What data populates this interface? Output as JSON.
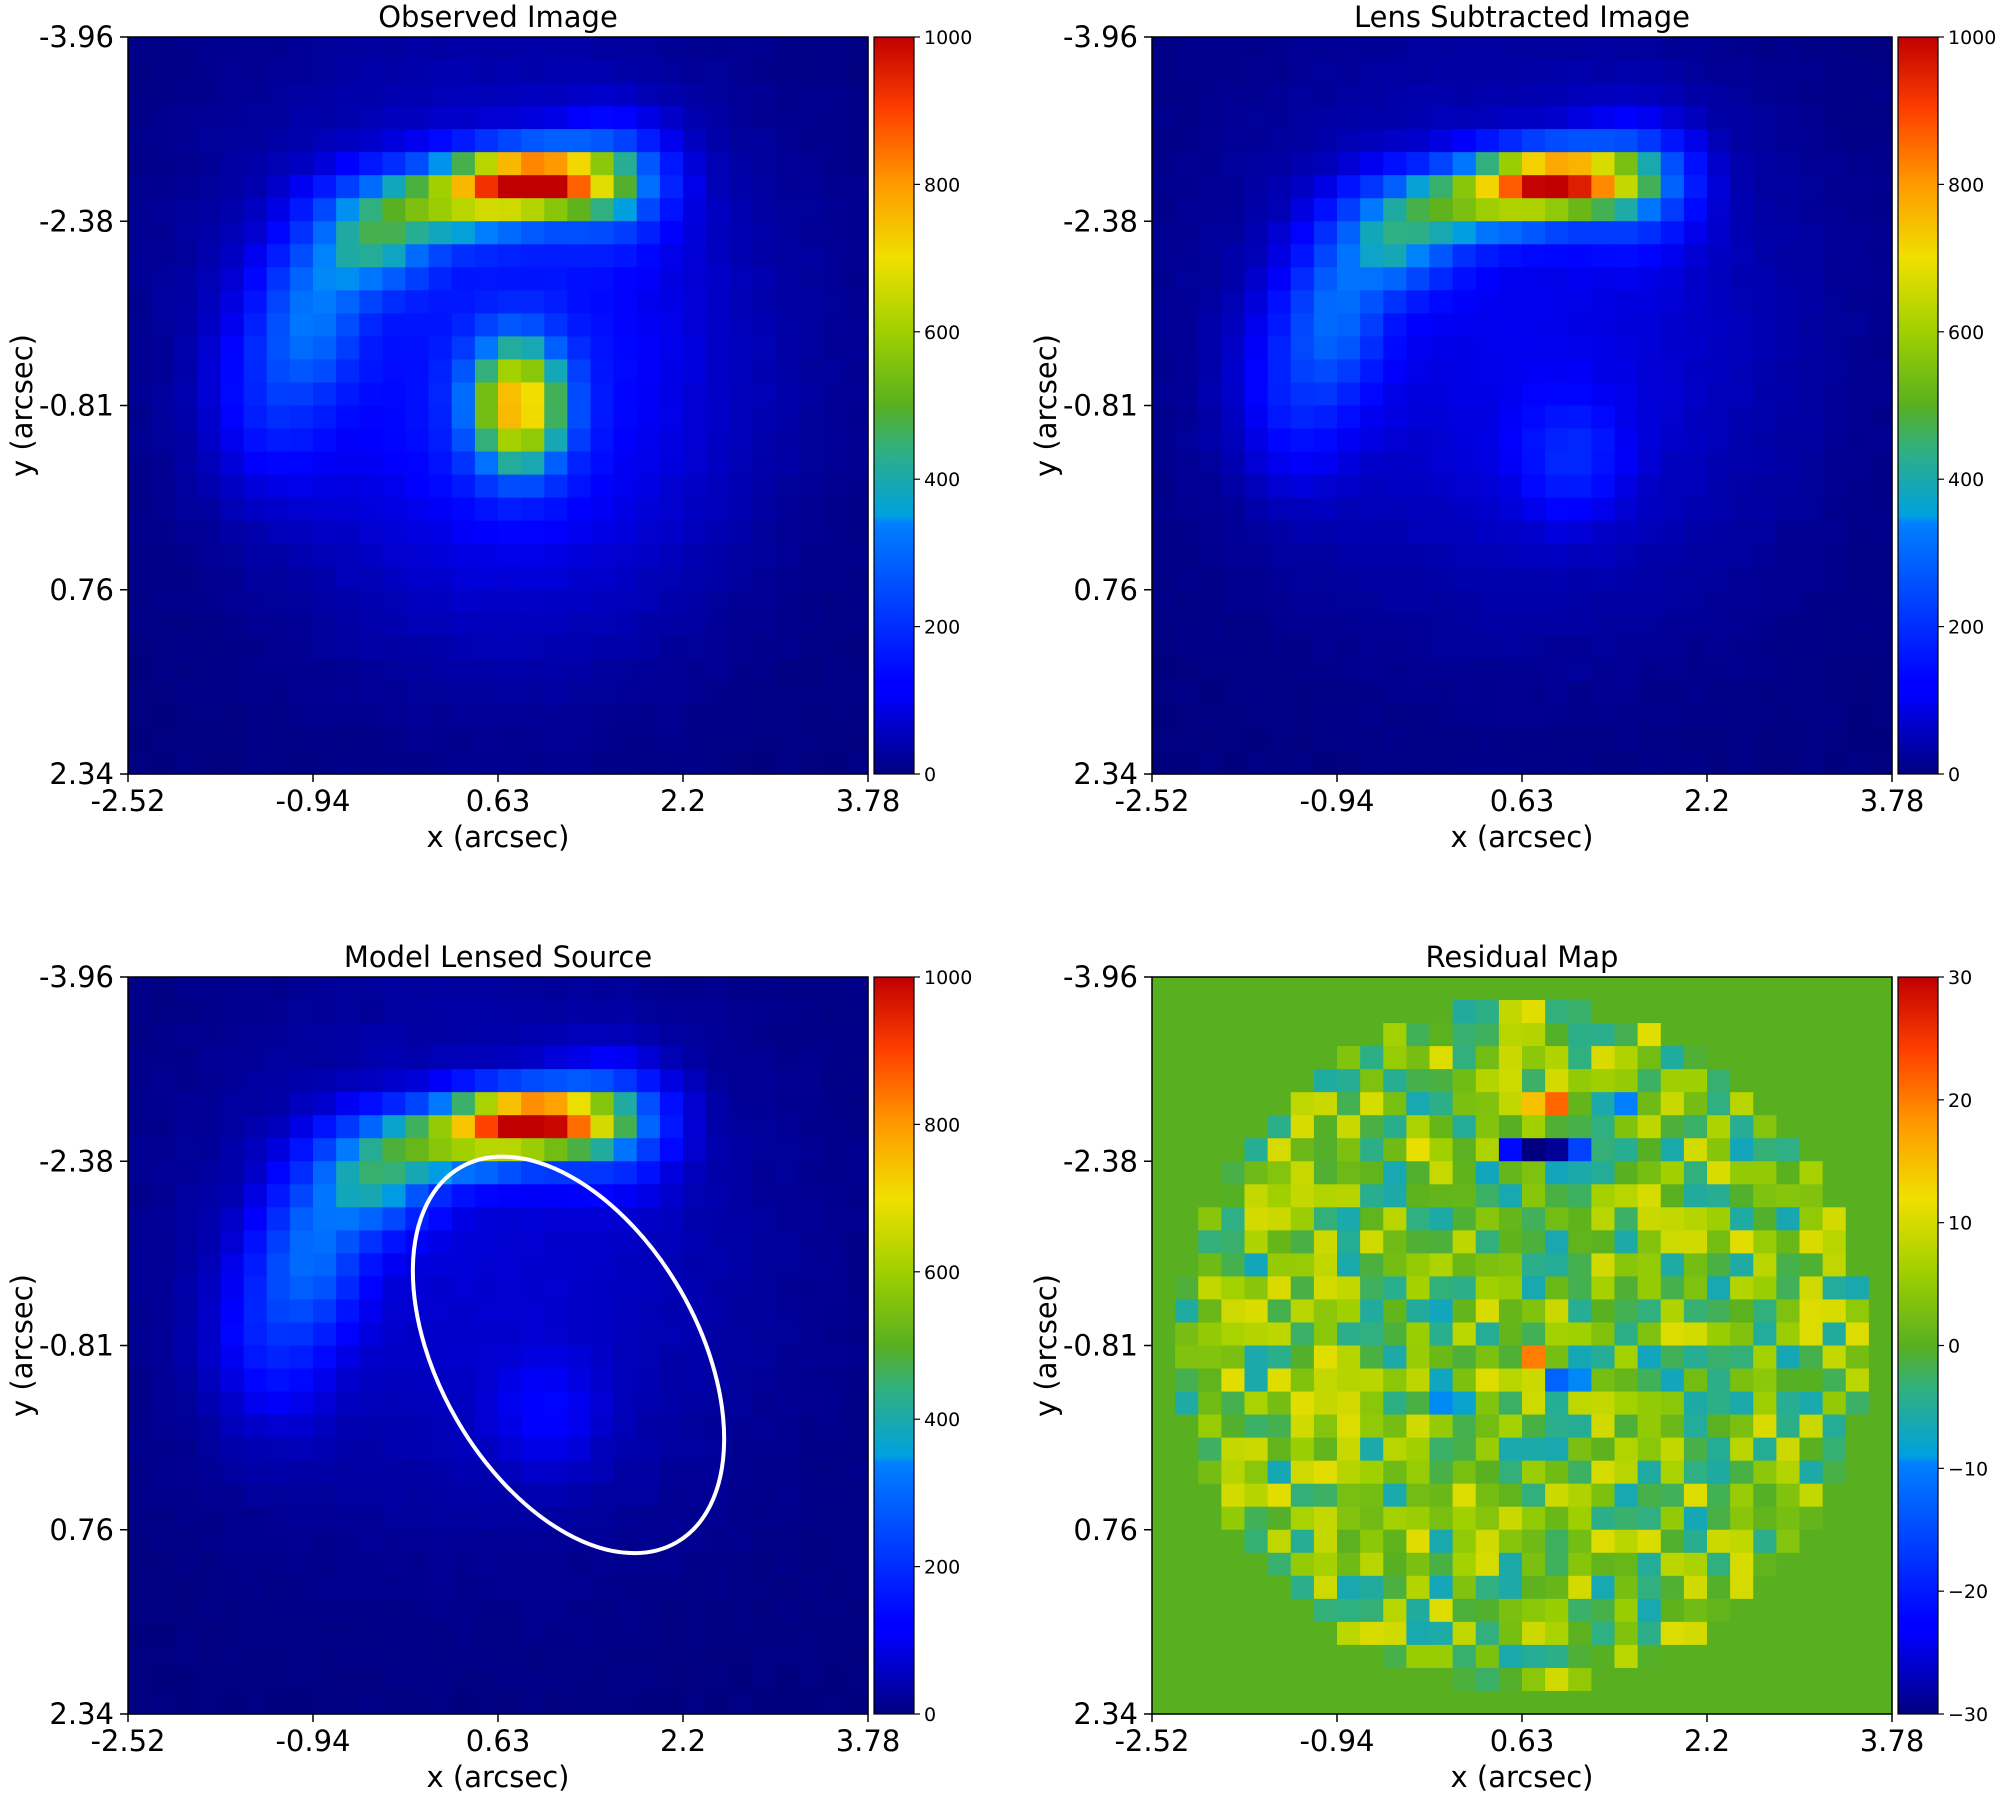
{
  "figure": {
    "panels": [
      {
        "title": "Observed Image"
      },
      {
        "title": "Lens Subtracted Image"
      },
      {
        "title": "Model Lensed Source"
      },
      {
        "title": "Residual Map"
      }
    ]
  },
  "chart_data": [
    {
      "type": "heatmap",
      "id": "observed",
      "title": "Observed Image",
      "xlabel": "x (arcsec)",
      "ylabel": "y (arcsec)",
      "xticks": [
        "-2.52",
        "-0.94",
        "0.63",
        "2.2",
        "3.78"
      ],
      "yticks": [
        "-3.96",
        "-2.38",
        "-0.81",
        "0.76",
        "2.34"
      ],
      "xlim": [
        -2.52,
        3.78
      ],
      "ylim": [
        -3.96,
        2.34
      ],
      "colormap": "jet",
      "colorbar": {
        "min": 0,
        "max": 1000,
        "ticks": [
          "0",
          "200",
          "400",
          "600",
          "800",
          "1000"
        ]
      },
      "grid_size": [
        32,
        32
      ],
      "features": [
        {
          "kind": "arc",
          "description": "bright upper arc",
          "peak_x": 0.9,
          "peak_y": -2.8,
          "peak_value": 1000
        },
        {
          "kind": "blob",
          "description": "central lens galaxy",
          "x": 0.8,
          "y": -0.8,
          "peak_value": 650
        }
      ]
    },
    {
      "type": "heatmap",
      "id": "lens_subtracted",
      "title": "Lens Subtracted Image",
      "xlabel": "x (arcsec)",
      "ylabel": "y (arcsec)",
      "xticks": [
        "-2.52",
        "-0.94",
        "0.63",
        "2.2",
        "3.78"
      ],
      "yticks": [
        "-3.96",
        "-2.38",
        "-0.81",
        "0.76",
        "2.34"
      ],
      "xlim": [
        -2.52,
        3.78
      ],
      "ylim": [
        -3.96,
        2.34
      ],
      "colormap": "jet",
      "colorbar": {
        "min": 0,
        "max": 1000,
        "ticks": [
          "0",
          "200",
          "400",
          "600",
          "800",
          "1000"
        ]
      },
      "grid_size": [
        32,
        32
      ],
      "features": [
        {
          "kind": "arc",
          "description": "upper arc",
          "peak_x": 0.9,
          "peak_y": -2.8,
          "peak_value": 950
        },
        {
          "kind": "blob",
          "description": "faint counter image",
          "x": 1.0,
          "y": -0.4,
          "peak_value": 160
        }
      ]
    },
    {
      "type": "heatmap",
      "id": "model",
      "title": "Model Lensed Source",
      "xlabel": "x (arcsec)",
      "ylabel": "y (arcsec)",
      "xticks": [
        "-2.52",
        "-0.94",
        "0.63",
        "2.2",
        "3.78"
      ],
      "yticks": [
        "-3.96",
        "-2.38",
        "-0.81",
        "0.76",
        "2.34"
      ],
      "xlim": [
        -2.52,
        3.78
      ],
      "ylim": [
        -3.96,
        2.34
      ],
      "colormap": "jet",
      "colorbar": {
        "min": 0,
        "max": 1000,
        "ticks": [
          "0",
          "200",
          "400",
          "600",
          "800",
          "1000"
        ]
      },
      "grid_size": [
        32,
        32
      ],
      "features": [
        {
          "kind": "arc",
          "description": "model arc",
          "peak_x": 0.8,
          "peak_y": -2.8,
          "peak_value": 1000
        },
        {
          "kind": "blob",
          "description": "faint counter image",
          "x": 1.0,
          "y": -0.2,
          "peak_value": 100
        }
      ],
      "overlay": {
        "kind": "ellipse",
        "color": "#ffffff",
        "center_x": 1.23,
        "center_y": -0.73,
        "semi_major": 1.85,
        "semi_minor": 1.1,
        "angle_deg": -60
      }
    },
    {
      "type": "heatmap",
      "id": "residual",
      "title": "Residual Map",
      "xlabel": "x (arcsec)",
      "ylabel": "y (arcsec)",
      "xticks": [
        "-2.52",
        "-0.94",
        "0.63",
        "2.2",
        "3.78"
      ],
      "yticks": [
        "-3.96",
        "-2.38",
        "-0.81",
        "0.76",
        "2.34"
      ],
      "xlim": [
        -2.52,
        3.78
      ],
      "ylim": [
        -3.96,
        2.34
      ],
      "colormap": "jet",
      "colorbar": {
        "min": -30,
        "max": 30,
        "ticks": [
          "−30",
          "−20",
          "−10",
          "0",
          "10",
          "20",
          "30"
        ]
      },
      "grid_size": [
        32,
        32
      ],
      "mask": "circular, radius ≈ 2.9 arcsec centered at (0.63, -0.81); outside value 0",
      "value_range_observed": [
        -30,
        30
      ]
    }
  ]
}
